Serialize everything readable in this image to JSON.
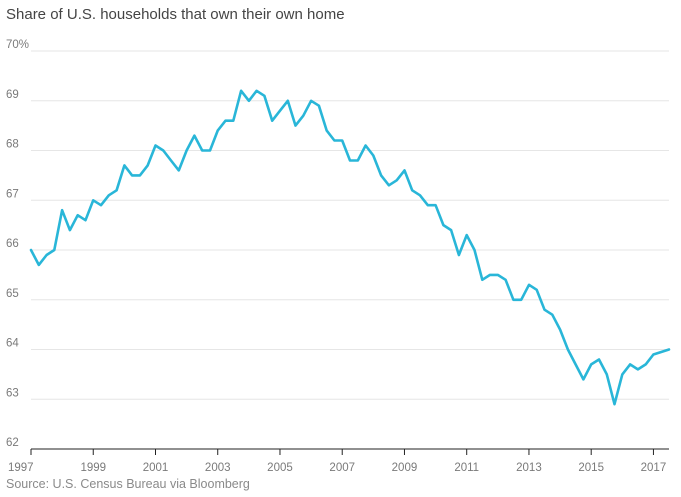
{
  "title": "Share of U.S. households that own their own home",
  "source": "Source: U.S. Census Bureau via Bloomberg",
  "chart_data": {
    "type": "line",
    "title": "Share of U.S. households that own their own home",
    "xlabel": "",
    "ylabel": "",
    "ylim": [
      62,
      70
    ],
    "xlim": [
      1997.0,
      2017.5
    ],
    "grid": true,
    "legend": "none",
    "line_color": "#29b6d8",
    "y_ticks": [
      62,
      63,
      64,
      65,
      66,
      67,
      68,
      69,
      70
    ],
    "y_tick_labels": [
      "62",
      "63",
      "64",
      "65",
      "66",
      "67",
      "68",
      "69",
      "70%"
    ],
    "x_ticks": [
      1997,
      1999,
      2001,
      2003,
      2005,
      2007,
      2009,
      2011,
      2013,
      2015,
      2017
    ],
    "x_tick_labels": [
      "1997",
      "1999",
      "2001",
      "2003",
      "2005",
      "2007",
      "2009",
      "2011",
      "2013",
      "2015",
      "2017"
    ],
    "series": [
      {
        "x": [
          1997.0,
          1997.25,
          1997.5,
          1997.75,
          1998.0,
          1998.25,
          1998.5,
          1998.75,
          1999.0,
          1999.25,
          1999.5,
          1999.75,
          2000.0,
          2000.25,
          2000.5,
          2000.75,
          2001.0,
          2001.25,
          2001.5,
          2001.75,
          2002.0,
          2002.25,
          2002.5,
          2002.75,
          2003.0,
          2003.25,
          2003.5,
          2003.75,
          2004.0,
          2004.25,
          2004.5,
          2004.75,
          2005.0,
          2005.25,
          2005.5,
          2005.75,
          2006.0,
          2006.25,
          2006.5,
          2006.75,
          2007.0,
          2007.25,
          2007.5,
          2007.75,
          2008.0,
          2008.25,
          2008.5,
          2008.75,
          2009.0,
          2009.25,
          2009.5,
          2009.75,
          2010.0,
          2010.25,
          2010.5,
          2010.75,
          2011.0,
          2011.25,
          2011.5,
          2011.75,
          2012.0,
          2012.25,
          2012.5,
          2012.75,
          2013.0,
          2013.25,
          2013.5,
          2013.75,
          2014.0,
          2014.25,
          2014.5,
          2014.75,
          2015.0,
          2015.25,
          2015.5,
          2015.75,
          2016.0,
          2016.25,
          2016.5,
          2016.75,
          2017.0,
          2017.25,
          2017.5
        ],
        "y": [
          66.0,
          65.7,
          65.9,
          66.0,
          66.8,
          66.4,
          66.7,
          66.6,
          67.0,
          66.9,
          67.1,
          67.2,
          67.7,
          67.5,
          67.5,
          67.7,
          68.1,
          68.0,
          67.8,
          67.6,
          68.0,
          68.3,
          68.0,
          68.0,
          68.4,
          68.6,
          68.6,
          69.2,
          69.0,
          69.2,
          69.1,
          68.6,
          68.8,
          69.0,
          68.5,
          68.7,
          69.0,
          68.9,
          68.4,
          68.2,
          68.2,
          67.8,
          67.8,
          68.1,
          67.9,
          67.5,
          67.3,
          67.4,
          67.6,
          67.2,
          67.1,
          66.9,
          66.9,
          66.5,
          66.4,
          65.9,
          66.3,
          66.0,
          65.4,
          65.5,
          65.5,
          65.4,
          65.0,
          65.0,
          65.3,
          65.2,
          64.8,
          64.7,
          64.4,
          64.0,
          63.7,
          63.4,
          63.7,
          63.8,
          63.5,
          62.9,
          63.5,
          63.7,
          63.6,
          63.7,
          63.9,
          63.95,
          64.0
        ]
      }
    ]
  }
}
